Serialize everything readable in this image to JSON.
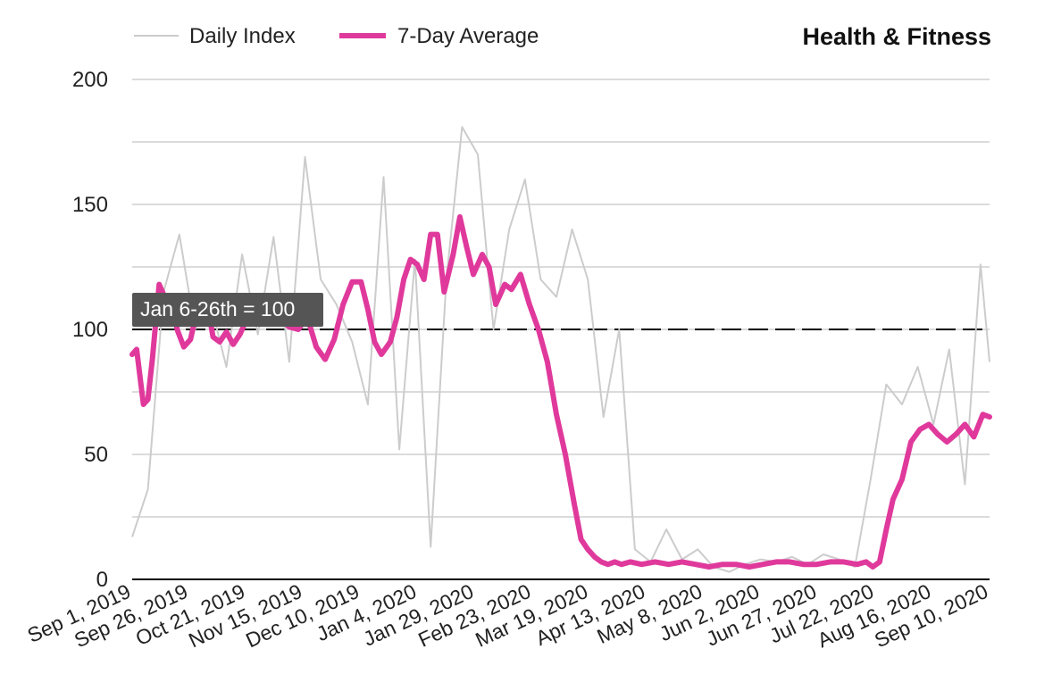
{
  "chart_data": {
    "type": "line",
    "title": "Health & Fitness",
    "xlabel": "",
    "ylabel": "",
    "ylim": [
      0,
      200
    ],
    "yticks": [
      0,
      50,
      100,
      150,
      200
    ],
    "xlim": [
      "2019-09-01",
      "2020-09-17"
    ],
    "xtick_labels": [
      "Sep 1, 2019",
      "Sep 26, 2019",
      "Oct 21, 2019",
      "Nov 15, 2019",
      "Dec 10, 2019",
      "Jan 4, 2020",
      "Jan 29, 2020",
      "Feb 23, 2020",
      "Mar 19, 2020",
      "Apr 13, 2020",
      "May 8, 2020",
      "Jun 2, 2020",
      "Jun 27, 2020",
      "Jul 22, 2020",
      "Aug 16, 2020",
      "Sep 10, 2020"
    ],
    "grid": true,
    "legend": "top-left",
    "reference_line": {
      "y": 100,
      "label": "Jan 6-26th = 100"
    },
    "colors": {
      "daily": "#cccccc",
      "average": "#e0399c",
      "reference": "#000000",
      "label_bg": "#555555"
    },
    "series": [
      {
        "name": "Daily Index",
        "x": [
          "2019-09-01",
          "2019-09-08",
          "2019-09-15",
          "2019-09-22",
          "2019-09-29",
          "2019-10-06",
          "2019-10-13",
          "2019-10-20",
          "2019-10-27",
          "2019-11-03",
          "2019-11-10",
          "2019-11-17",
          "2019-11-24",
          "2019-12-01",
          "2019-12-08",
          "2019-12-15",
          "2019-12-22",
          "2019-12-29",
          "2020-01-05",
          "2020-01-12",
          "2020-01-19",
          "2020-01-26",
          "2020-02-02",
          "2020-02-09",
          "2020-02-16",
          "2020-02-23",
          "2020-03-01",
          "2020-03-08",
          "2020-03-15",
          "2020-03-22",
          "2020-03-29",
          "2020-04-05",
          "2020-04-12",
          "2020-04-19",
          "2020-04-26",
          "2020-05-03",
          "2020-05-10",
          "2020-05-17",
          "2020-05-24",
          "2020-05-31",
          "2020-06-07",
          "2020-06-14",
          "2020-06-21",
          "2020-06-28",
          "2020-07-05",
          "2020-07-12",
          "2020-07-19",
          "2020-07-26",
          "2020-08-02",
          "2020-08-09",
          "2020-08-16",
          "2020-08-23",
          "2020-08-30",
          "2020-09-06",
          "2020-09-13",
          "2020-09-17"
        ],
        "values": [
          17,
          36,
          115,
          138,
          100,
          110,
          85,
          130,
          98,
          137,
          87,
          169,
          120,
          110,
          95,
          70,
          161,
          52,
          128,
          13,
          120,
          181,
          170,
          100,
          140,
          160,
          120,
          113,
          140,
          120,
          65,
          100,
          12,
          7,
          20,
          8,
          12,
          5,
          3,
          6,
          8,
          7,
          9,
          6,
          10,
          8,
          5,
          40,
          78,
          70,
          85,
          62,
          92,
          38,
          126,
          87
        ]
      },
      {
        "name": "7-Day Average",
        "x": [
          "2019-09-01",
          "2019-09-03",
          "2019-09-06",
          "2019-09-08",
          "2019-09-10",
          "2019-09-13",
          "2019-09-16",
          "2019-09-19",
          "2019-09-21",
          "2019-09-24",
          "2019-09-27",
          "2019-10-01",
          "2019-10-04",
          "2019-10-07",
          "2019-10-10",
          "2019-10-13",
          "2019-10-16",
          "2019-10-19",
          "2019-10-22",
          "2019-10-25",
          "2019-10-29",
          "2019-11-02",
          "2019-11-06",
          "2019-11-10",
          "2019-11-14",
          "2019-11-18",
          "2019-11-22",
          "2019-11-26",
          "2019-11-30",
          "2019-12-04",
          "2019-12-08",
          "2019-12-12",
          "2019-12-15",
          "2019-12-18",
          "2019-12-21",
          "2019-12-25",
          "2019-12-28",
          "2019-12-31",
          "2020-01-03",
          "2020-01-06",
          "2020-01-09",
          "2020-01-12",
          "2020-01-15",
          "2020-01-18",
          "2020-01-22",
          "2020-01-25",
          "2020-01-28",
          "2020-01-31",
          "2020-02-04",
          "2020-02-07",
          "2020-02-10",
          "2020-02-14",
          "2020-02-17",
          "2020-02-21",
          "2020-02-25",
          "2020-02-29",
          "2020-03-04",
          "2020-03-08",
          "2020-03-12",
          "2020-03-16",
          "2020-03-19",
          "2020-03-22",
          "2020-03-25",
          "2020-03-28",
          "2020-03-31",
          "2020-04-03",
          "2020-04-06",
          "2020-04-10",
          "2020-04-15",
          "2020-04-21",
          "2020-04-27",
          "2020-05-03",
          "2020-05-09",
          "2020-05-15",
          "2020-05-21",
          "2020-05-27",
          "2020-06-02",
          "2020-06-08",
          "2020-06-14",
          "2020-06-20",
          "2020-06-26",
          "2020-07-02",
          "2020-07-08",
          "2020-07-14",
          "2020-07-20",
          "2020-07-24",
          "2020-07-27",
          "2020-07-30",
          "2020-08-02",
          "2020-08-05",
          "2020-08-09",
          "2020-08-13",
          "2020-08-17",
          "2020-08-21",
          "2020-08-25",
          "2020-08-29",
          "2020-09-02",
          "2020-09-06",
          "2020-09-10",
          "2020-09-14",
          "2020-09-17"
        ],
        "values": [
          90,
          92,
          70,
          72,
          88,
          118,
          112,
          113,
          100,
          93,
          96,
          112,
          113,
          97,
          95,
          99,
          94,
          98,
          104,
          110,
          112,
          110,
          104,
          101,
          100,
          105,
          93,
          88,
          96,
          110,
          119,
          119,
          108,
          95,
          90,
          95,
          105,
          120,
          128,
          126,
          120,
          138,
          138,
          115,
          130,
          145,
          133,
          122,
          130,
          125,
          110,
          118,
          116,
          122,
          110,
          100,
          87,
          66,
          50,
          30,
          16,
          12,
          9,
          7,
          6,
          7,
          6,
          7,
          6,
          7,
          6,
          7,
          6,
          5,
          6,
          6,
          5,
          6,
          7,
          7,
          6,
          6,
          7,
          7,
          6,
          7,
          5,
          7,
          20,
          32,
          40,
          55,
          60,
          62,
          58,
          55,
          58,
          62,
          57,
          66,
          65
        ]
      }
    ]
  }
}
